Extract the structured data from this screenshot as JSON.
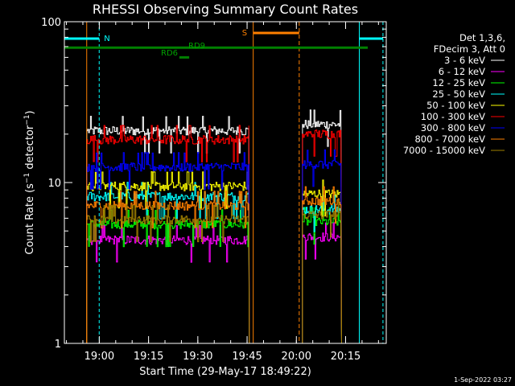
{
  "chart_data": {
    "type": "line",
    "title": "RHESSI Observing Summary Count Rates",
    "xlabel": "Start Time (29-May-17 18:49:22)",
    "ylabel_main": "Count Rate (s",
    "ylabel_sup1": "−1",
    "ylabel_mid": " detector",
    "ylabel_sup2": "−1",
    "ylabel_end": ")",
    "y_scale": "log",
    "ylim": [
      1,
      100
    ],
    "xlim_minutes": [
      0,
      98
    ],
    "x_ticks": [
      {
        "minute": 10.63,
        "label": "19:00"
      },
      {
        "minute": 25.63,
        "label": "19:15"
      },
      {
        "minute": 40.63,
        "label": "19:30"
      },
      {
        "minute": 55.63,
        "label": "19:45"
      },
      {
        "minute": 70.63,
        "label": "20:00"
      },
      {
        "minute": 85.63,
        "label": "20:15"
      }
    ],
    "y_ticks": [
      {
        "value": 1,
        "label": "1"
      },
      {
        "value": 10,
        "label": "10"
      },
      {
        "value": 100,
        "label": "100"
      }
    ],
    "legend_header": [
      "Det 1,3,6,",
      "FDecim 3, Att 0"
    ],
    "legend_position": "right",
    "timestamp": "1-Sep-2022 03:27",
    "intervals": [
      {
        "start": 6.8,
        "end": 56.3
      },
      {
        "start": 72.5,
        "end": 84.4
      }
    ],
    "series": [
      {
        "name": "3 - 6 keV",
        "color": "#ffffff",
        "levels": [
          21,
          23
        ]
      },
      {
        "name": "6 - 12 keV",
        "color": "#ff00ff",
        "levels": [
          4.4,
          4.6
        ]
      },
      {
        "name": "12 - 25 keV",
        "color": "#00ff00",
        "levels": [
          5.5,
          5.7
        ]
      },
      {
        "name": "25 - 50 keV",
        "color": "#00ffff",
        "levels": [
          8.2,
          6.8
        ]
      },
      {
        "name": "50 - 100 keV",
        "color": "#ffff00",
        "levels": [
          9.5,
          8.5
        ]
      },
      {
        "name": "100 - 300 keV",
        "color": "#ff0000",
        "levels": [
          18.5,
          20
        ]
      },
      {
        "name": "300 - 800 keV",
        "color": "#0000ff",
        "levels": [
          12.5,
          13
        ]
      },
      {
        "name": "800 - 7000 keV",
        "color": "#ff8000",
        "levels": [
          7.2,
          7.7
        ]
      },
      {
        "name": "7000 - 15000 keV",
        "color": "#a08000",
        "levels": [
          5.9,
          6.3
        ]
      }
    ],
    "annotations": {
      "night_label": "N",
      "saa_label": "S",
      "rd_labels": [
        "RD6",
        "RD9"
      ],
      "night_markers": [
        {
          "color": "#00ffff",
          "start": 0,
          "end": 10.6
        },
        {
          "color": "#00ffff",
          "start": 89.8,
          "end": 97
        }
      ],
      "saa_marker": {
        "color": "#ff8000",
        "start": 57.5,
        "end": 71.5
      },
      "decim_line": {
        "color": "#008000",
        "value": 69
      },
      "rd_segment": {
        "color": "#008000",
        "start": 35,
        "end": 38,
        "value": 60
      }
    }
  }
}
